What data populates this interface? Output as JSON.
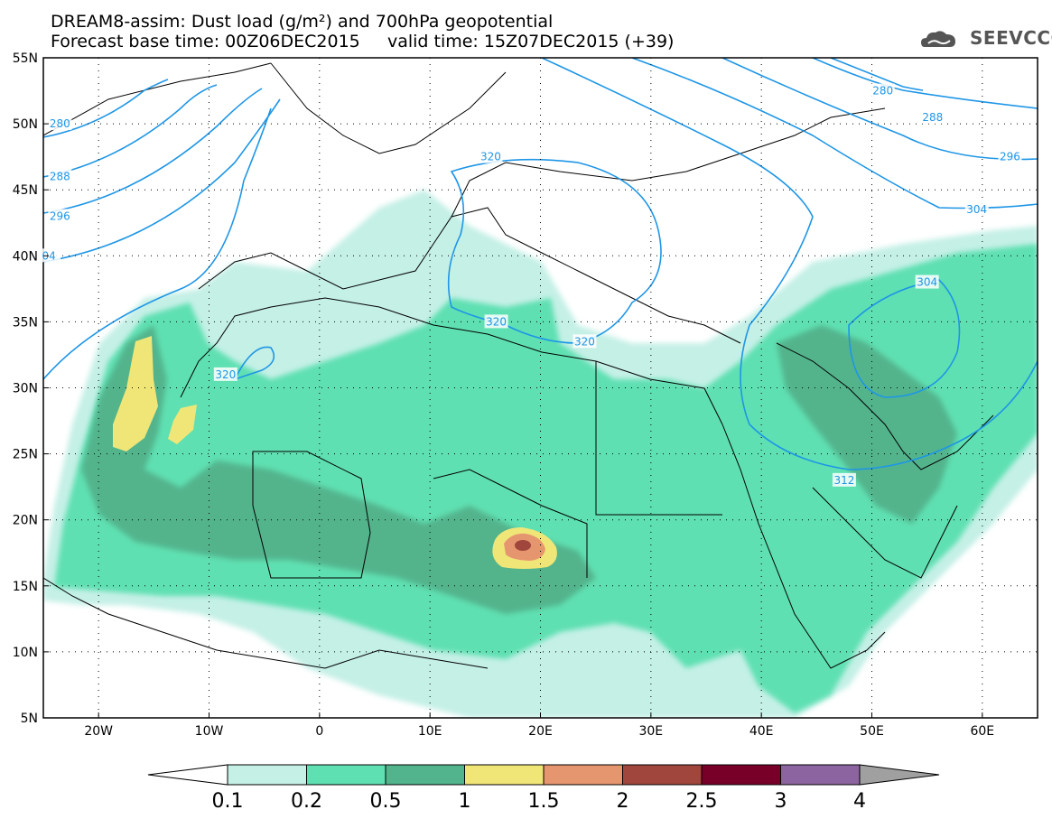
{
  "title_line1": "DREAM8-assim: Dust load (g/m²) and 700hPa geopotential",
  "title_line2": "Forecast base time: 00Z06DEC2015     valid time: 15Z07DEC2015 (+39)",
  "logo_text": "SEEVCCC",
  "colors": {
    "contour": "#1e96e6",
    "levels": [
      "#c5f0e6",
      "#5fe0b2",
      "#52b48c",
      "#f0e678",
      "#e6966e",
      "#a0463c",
      "#780028",
      "#8c64a0",
      "#a0a0a0"
    ]
  },
  "map": {
    "lon_range": [
      -25,
      65
    ],
    "lat_range": [
      5,
      55
    ],
    "lat_ticks": [
      "55N",
      "50N",
      "45N",
      "40N",
      "35N",
      "30N",
      "25N",
      "20N",
      "15N",
      "10N",
      "5N"
    ],
    "lon_ticks": [
      "20W",
      "10W",
      "0",
      "10E",
      "20E",
      "30E",
      "40E",
      "50E",
      "60E"
    ],
    "contour_labels": [
      {
        "text": "280",
        "lon": -23.5,
        "lat": 50
      },
      {
        "text": "288",
        "lon": -23.5,
        "lat": 46
      },
      {
        "text": "296",
        "lon": -23.5,
        "lat": 43
      },
      {
        "text": "04",
        "lon": -24.5,
        "lat": 40
      },
      {
        "text": "320",
        "lon": -8.5,
        "lat": 31
      },
      {
        "text": "320",
        "lon": 15.5,
        "lat": 47.5
      },
      {
        "text": "320",
        "lon": 16,
        "lat": 35
      },
      {
        "text": "320",
        "lon": 24,
        "lat": 33.5
      },
      {
        "text": "280",
        "lon": 51,
        "lat": 52.5
      },
      {
        "text": "288",
        "lon": 55.5,
        "lat": 50.5
      },
      {
        "text": "296",
        "lon": 62.5,
        "lat": 47.5
      },
      {
        "text": "304",
        "lon": 59.5,
        "lat": 43.5
      },
      {
        "text": "304",
        "lon": 55,
        "lat": 38
      },
      {
        "text": "312",
        "lon": 47.5,
        "lat": 23
      }
    ]
  },
  "colorbar": {
    "labels": [
      "0.1",
      "0.2",
      "0.5",
      "1",
      "1.5",
      "2",
      "2.5",
      "3",
      "4"
    ]
  }
}
